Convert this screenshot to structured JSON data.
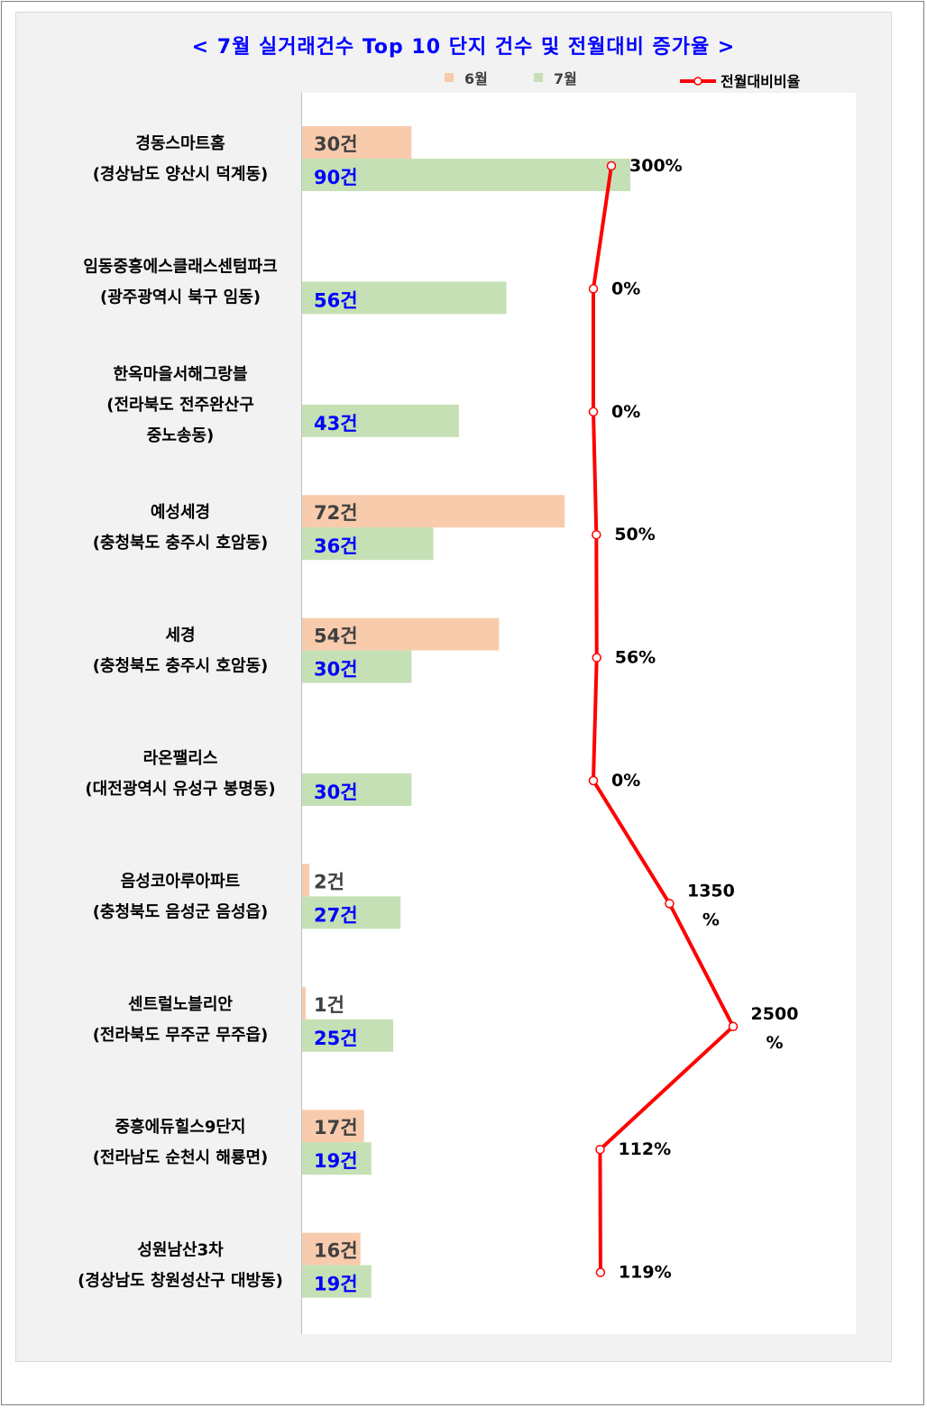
{
  "chart_data": {
    "type": "bar",
    "title": "< 7월 실거래건수 Top 10 단지 건수 및 전월대비 증가율 >",
    "categories": [
      "경동스마트홈\n(경상남도 양산시 덕계동)",
      "임동중흥에스클래스센텀파크\n(광주광역시 북구 임동)",
      "한옥마을서해그랑블\n(전라북도 전주완산구\n중노송동)",
      "예성세경\n(충청북도 충주시 호암동)",
      "세경\n(충청북도 충주시 호암동)",
      "라온팰리스\n(대전광역시 유성구 봉명동)",
      "음성코아루아파트\n(충청북도 음성군 음성읍)",
      "센트럴노블리안\n(전라북도 무주군 무주읍)",
      "중흥에듀힐스9단지\n(전라남도 순천시 해룡면)",
      "성원남산3차\n(경상남도 창원성산구 대방동)"
    ],
    "series": [
      {
        "name": "6월",
        "color": "#f8cbad",
        "values": [
          30,
          null,
          null,
          72,
          54,
          null,
          2,
          1,
          17,
          16
        ]
      },
      {
        "name": "7월",
        "color": "#c5e0b4",
        "values": [
          90,
          56,
          43,
          36,
          30,
          30,
          27,
          25,
          19,
          19
        ]
      },
      {
        "name": "전월대비비율",
        "color": "#ff0000",
        "type": "line",
        "values": [
          300,
          0,
          0,
          50,
          56,
          0,
          1350,
          2500,
          112,
          119
        ]
      }
    ],
    "bar_labels": {
      "june": [
        "30건",
        "",
        "",
        "72건",
        "54건",
        "",
        "2건",
        "1건",
        "17건",
        "16건"
      ],
      "july": [
        "90건",
        "56건",
        "43건",
        "36건",
        "30건",
        "30건",
        "27건",
        "25건",
        "19건",
        "19건"
      ],
      "ratio": [
        "300%",
        "0%",
        "0%",
        "50%",
        "56%",
        "0%",
        "1350\n%",
        "2500\n%",
        "112%",
        "119%"
      ]
    },
    "bar_value_max": 90,
    "legend_position": "top-right",
    "label_color_june": "#404040",
    "label_color_july": "#0000ff"
  }
}
